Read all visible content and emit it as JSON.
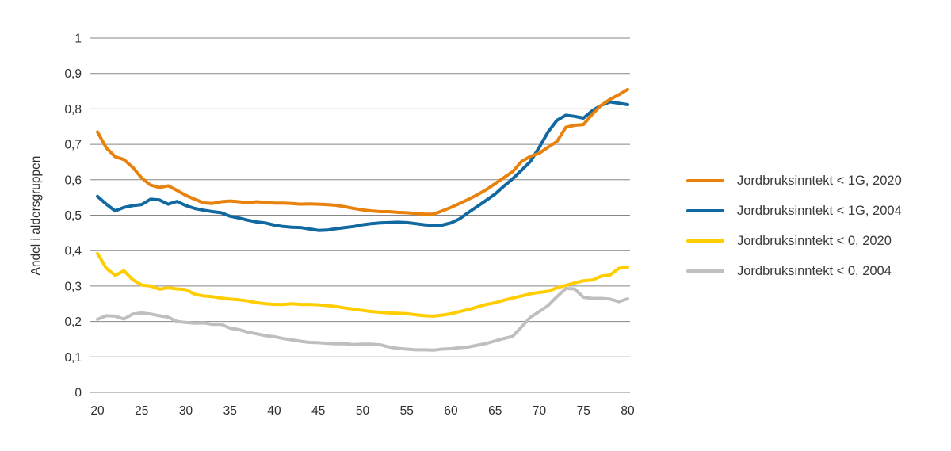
{
  "chart_data": {
    "type": "line",
    "title": "",
    "xlabel": "",
    "ylabel": "Andel i aldersgruppen",
    "xlim": [
      20,
      80
    ],
    "ylim": [
      0,
      1
    ],
    "grid": "horizontal",
    "legend_position": "right",
    "x_ticks": [
      20,
      25,
      30,
      35,
      40,
      45,
      50,
      55,
      60,
      65,
      70,
      75,
      80
    ],
    "y_ticks": [
      0,
      0.1,
      0.2,
      0.3,
      0.4,
      0.5,
      0.6,
      0.7,
      0.8,
      0.9,
      1
    ],
    "y_tick_labels": [
      "0",
      "0,1",
      "0,2",
      "0,3",
      "0,4",
      "0,5",
      "0,6",
      "0,7",
      "0,8",
      "0,9",
      "1"
    ],
    "x": [
      20,
      21,
      22,
      23,
      24,
      25,
      26,
      27,
      28,
      29,
      30,
      31,
      32,
      33,
      34,
      35,
      36,
      37,
      38,
      39,
      40,
      41,
      42,
      43,
      44,
      45,
      46,
      47,
      48,
      49,
      50,
      51,
      52,
      53,
      54,
      55,
      56,
      57,
      58,
      59,
      60,
      61,
      62,
      63,
      64,
      65,
      66,
      67,
      68,
      69,
      70,
      71,
      72,
      73,
      74,
      75,
      76,
      77,
      78,
      79,
      80
    ],
    "series": [
      {
        "name": "Jordbruksinntekt < 1G, 2020",
        "color": "#E8820D",
        "values": [
          0.735,
          0.69,
          0.665,
          0.657,
          0.635,
          0.605,
          0.585,
          0.578,
          0.583,
          0.57,
          0.556,
          0.545,
          0.535,
          0.533,
          0.538,
          0.54,
          0.538,
          0.535,
          0.538,
          0.536,
          0.534,
          0.534,
          0.533,
          0.531,
          0.532,
          0.531,
          0.53,
          0.528,
          0.524,
          0.519,
          0.515,
          0.512,
          0.51,
          0.51,
          0.508,
          0.507,
          0.505,
          0.503,
          0.503,
          0.512,
          0.522,
          0.533,
          0.545,
          0.558,
          0.572,
          0.589,
          0.606,
          0.623,
          0.652,
          0.666,
          0.675,
          0.692,
          0.708,
          0.748,
          0.754,
          0.756,
          0.785,
          0.81,
          0.827,
          0.84,
          0.855
        ]
      },
      {
        "name": "Jordbruksinntekt < 1G, 2004",
        "color": "#1268A0",
        "values": [
          0.553,
          0.531,
          0.512,
          0.522,
          0.527,
          0.53,
          0.545,
          0.543,
          0.531,
          0.539,
          0.527,
          0.519,
          0.514,
          0.51,
          0.507,
          0.497,
          0.492,
          0.486,
          0.481,
          0.478,
          0.472,
          0.468,
          0.466,
          0.465,
          0.461,
          0.457,
          0.458,
          0.462,
          0.465,
          0.468,
          0.473,
          0.476,
          0.478,
          0.479,
          0.48,
          0.479,
          0.476,
          0.473,
          0.471,
          0.472,
          0.478,
          0.49,
          0.508,
          0.525,
          0.542,
          0.56,
          0.582,
          0.603,
          0.627,
          0.652,
          0.692,
          0.735,
          0.768,
          0.782,
          0.779,
          0.774,
          0.795,
          0.81,
          0.82,
          0.816,
          0.812
        ]
      },
      {
        "name": "Jordbruksinntekt < 0, 2020",
        "color": "#FFCD00",
        "values": [
          0.392,
          0.35,
          0.33,
          0.343,
          0.318,
          0.303,
          0.3,
          0.291,
          0.295,
          0.292,
          0.29,
          0.277,
          0.272,
          0.27,
          0.266,
          0.263,
          0.261,
          0.258,
          0.253,
          0.25,
          0.248,
          0.248,
          0.25,
          0.248,
          0.248,
          0.247,
          0.245,
          0.242,
          0.238,
          0.235,
          0.231,
          0.228,
          0.226,
          0.224,
          0.223,
          0.222,
          0.219,
          0.216,
          0.215,
          0.218,
          0.222,
          0.228,
          0.234,
          0.241,
          0.248,
          0.253,
          0.26,
          0.266,
          0.272,
          0.278,
          0.282,
          0.285,
          0.295,
          0.302,
          0.309,
          0.315,
          0.317,
          0.328,
          0.331,
          0.35,
          0.354
        ]
      },
      {
        "name": "Jordbruksinntekt < 0, 2004",
        "color": "#BFBFBF",
        "values": [
          0.206,
          0.216,
          0.215,
          0.207,
          0.221,
          0.224,
          0.221,
          0.216,
          0.212,
          0.2,
          0.197,
          0.195,
          0.196,
          0.192,
          0.192,
          0.181,
          0.177,
          0.17,
          0.165,
          0.16,
          0.157,
          0.152,
          0.148,
          0.144,
          0.141,
          0.14,
          0.138,
          0.137,
          0.137,
          0.135,
          0.136,
          0.136,
          0.134,
          0.128,
          0.124,
          0.122,
          0.12,
          0.12,
          0.119,
          0.122,
          0.123,
          0.126,
          0.128,
          0.133,
          0.138,
          0.145,
          0.152,
          0.158,
          0.185,
          0.212,
          0.228,
          0.245,
          0.27,
          0.293,
          0.292,
          0.268,
          0.265,
          0.265,
          0.263,
          0.256,
          0.264
        ]
      }
    ],
    "style": {
      "gridline_color": "#878787",
      "tick_label_color": "#2e2e2e",
      "line_width": 4
    }
  }
}
